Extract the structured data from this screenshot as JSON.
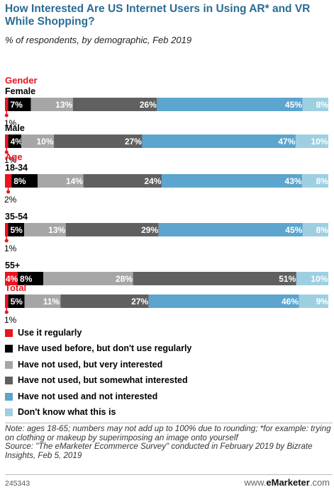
{
  "title": "How Interested Are US Internet Users in Using AR* and VR While Shopping?",
  "subtitle": "% of respondents, by demographic, Feb 2019",
  "colors": [
    "#e8141e",
    "#000000",
    "#a6a6a6",
    "#606060",
    "#5ba5ce",
    "#9ecfe1"
  ],
  "chart_data": {
    "type": "bar",
    "stacked": true,
    "orientation": "horizontal",
    "unit": "%",
    "groups": [
      {
        "label": "Gender",
        "rows": [
          {
            "label": "Female",
            "values": [
              1,
              7,
              13,
              26,
              45,
              8
            ]
          },
          {
            "label": "Male",
            "values": [
              1,
              4,
              10,
              27,
              47,
              10
            ]
          }
        ]
      },
      {
        "label": "Age",
        "rows": [
          {
            "label": "18-34",
            "values": [
              2,
              8,
              14,
              24,
              43,
              8
            ]
          },
          {
            "label": "35-54",
            "values": [
              1,
              5,
              13,
              29,
              45,
              8
            ]
          },
          {
            "label": "55+",
            "values": [
              4,
              8,
              28,
              51,
              0,
              10
            ]
          }
        ]
      },
      {
        "label": "Total",
        "rows": [
          {
            "label": "",
            "values": [
              1,
              5,
              11,
              27,
              46,
              9
            ]
          }
        ]
      }
    ],
    "series": [
      {
        "name": "Use it regularly"
      },
      {
        "name": "Have used before, but don't use regularly"
      },
      {
        "name": "Have not used, but very interested"
      },
      {
        "name": "Have not used, but somewhat interested"
      },
      {
        "name": "Have not used and not interested"
      },
      {
        "name": "Don't know what this is"
      }
    ]
  },
  "note": "Note: ages 18-65; numbers may not add up to 100% due to rounding; *for example: trying on clothing or makeup by superimposing an image onto yourself",
  "source": "Source: \"The eMarketer Ecommerce Survey\" conducted in February 2019 by Bizrate Insights, Feb 5, 2019",
  "footer": {
    "chart_id": "245343",
    "brand_prefix": "www.",
    "brand_name": "eMarketer",
    "brand_suffix": ".com"
  }
}
